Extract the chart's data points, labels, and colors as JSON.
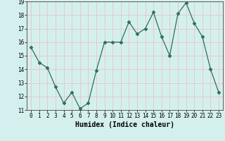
{
  "x": [
    0,
    1,
    2,
    3,
    4,
    5,
    6,
    7,
    8,
    9,
    10,
    11,
    12,
    13,
    14,
    15,
    16,
    17,
    18,
    19,
    20,
    21,
    22,
    23
  ],
  "y": [
    15.6,
    14.5,
    14.1,
    12.7,
    11.5,
    12.3,
    11.1,
    11.5,
    13.9,
    16.0,
    16.0,
    16.0,
    17.5,
    16.6,
    17.0,
    18.2,
    16.4,
    15.0,
    18.1,
    18.9,
    17.4,
    16.4,
    14.0,
    12.3
  ],
  "xlabel": "Humidex (Indice chaleur)",
  "ylim": [
    11,
    19
  ],
  "xlim": [
    -0.5,
    23.5
  ],
  "yticks": [
    11,
    12,
    13,
    14,
    15,
    16,
    17,
    18,
    19
  ],
  "xticks": [
    0,
    1,
    2,
    3,
    4,
    5,
    6,
    7,
    8,
    9,
    10,
    11,
    12,
    13,
    14,
    15,
    16,
    17,
    18,
    19,
    20,
    21,
    22,
    23
  ],
  "line_color": "#2d6e5e",
  "marker": "D",
  "marker_size": 2.5,
  "bg_color": "#d4f0ee",
  "grid_color": "#e8c8c8",
  "xlabel_fontsize": 7,
  "tick_fontsize": 5.5
}
